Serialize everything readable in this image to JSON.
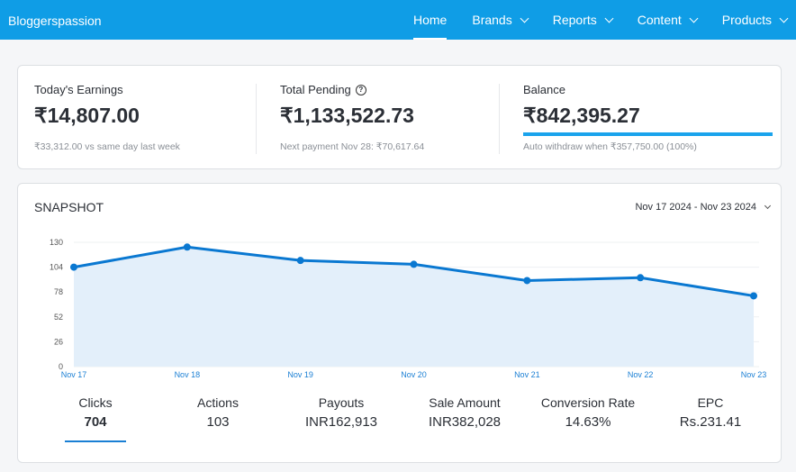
{
  "nav": {
    "brand": "Bloggerspassion",
    "items": [
      {
        "label": "Home",
        "active": true
      },
      {
        "label": "Brands"
      },
      {
        "label": "Reports"
      },
      {
        "label": "Content"
      },
      {
        "label": "Products"
      }
    ]
  },
  "summary": {
    "earnings": {
      "label": "Today's Earnings",
      "value": "₹14,807.00",
      "sub": "₹33,312.00 vs same day last week"
    },
    "pending": {
      "label": "Total Pending",
      "help_icon": "question-circle-icon",
      "value": "₹1,133,522.73",
      "sub": "Next payment Nov 28: ₹70,617.64"
    },
    "balance": {
      "label": "Balance",
      "value": "₹842,395.27",
      "progress_percent": 100,
      "sub": "Auto withdraw when ₹357,750.00 (100%)"
    }
  },
  "snapshot": {
    "title": "SNAPSHOT",
    "date_range": "Nov 17 2024 - Nov 23 2024",
    "metrics": [
      {
        "label": "Clicks",
        "value": "704",
        "selected": true
      },
      {
        "label": "Actions",
        "value": "103"
      },
      {
        "label": "Payouts",
        "value": "INR162,913"
      },
      {
        "label": "Sale Amount",
        "value": "INR382,028"
      },
      {
        "label": "Conversion Rate",
        "value": "14.63%"
      },
      {
        "label": "EPC",
        "value": "Rs.231.41"
      }
    ]
  },
  "chart_data": {
    "type": "area",
    "categories": [
      "Nov 17",
      "Nov 18",
      "Nov 19",
      "Nov 20",
      "Nov 21",
      "Nov 22",
      "Nov 23"
    ],
    "values": [
      104,
      125,
      111,
      107,
      90,
      93,
      74
    ],
    "yticks": [
      0,
      26,
      52,
      78,
      104,
      130
    ],
    "ylim": [
      0,
      130
    ],
    "grid": true,
    "colors": {
      "line": "#0a78d1",
      "fill": "#e3effa"
    }
  }
}
